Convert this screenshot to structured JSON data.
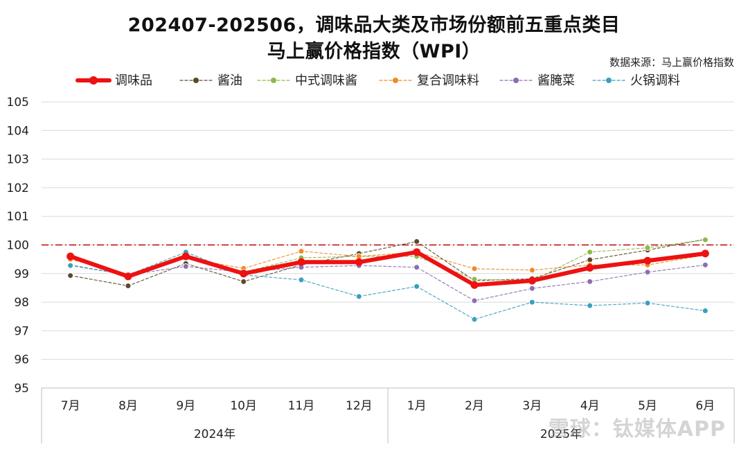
{
  "watermark": "雪球：钛媒体APP",
  "chart_data": {
    "type": "line",
    "title": "202407-202506，调味品大类及市场份额前五重点类目",
    "subtitle": "马上赢价格指数（WPI）",
    "source": "数据来源：马上赢价格指数",
    "categories": [
      "7月",
      "8月",
      "9月",
      "10月",
      "11月",
      "12月",
      "1月",
      "2月",
      "3月",
      "4月",
      "5月",
      "6月"
    ],
    "year_groups": [
      {
        "label": "2024年",
        "span": 6
      },
      {
        "label": "2025年",
        "span": 6
      }
    ],
    "ylim": [
      95,
      105
    ],
    "yticks": [
      95,
      96,
      97,
      98,
      99,
      100,
      101,
      102,
      103,
      104,
      105
    ],
    "reference_line": 100,
    "legend_position": "top",
    "series": [
      {
        "name": "调味品",
        "color": "#ee1111",
        "style": "solid-bold",
        "values": [
          99.6,
          98.9,
          99.6,
          99.0,
          99.4,
          99.4,
          99.75,
          98.6,
          98.75,
          99.2,
          99.45,
          99.7
        ]
      },
      {
        "name": "酱油",
        "color": "#5a4a2a",
        "style": "dashed",
        "values": [
          98.93,
          98.57,
          99.35,
          98.72,
          99.3,
          99.7,
          100.12,
          98.75,
          98.82,
          99.48,
          99.82,
          100.2
        ]
      },
      {
        "name": "中式调味酱",
        "color": "#8db84a",
        "style": "dashed",
        "values": [
          99.55,
          98.95,
          99.6,
          99.05,
          99.55,
          99.6,
          99.6,
          98.8,
          98.75,
          99.75,
          99.9,
          100.18
        ]
      },
      {
        "name": "复合调味料",
        "color": "#f08a24",
        "style": "dashed",
        "values": [
          99.5,
          98.98,
          99.55,
          99.18,
          99.78,
          99.6,
          99.75,
          99.17,
          99.12,
          99.3,
          99.3,
          99.65
        ]
      },
      {
        "name": "酱腌菜",
        "color": "#8a6eb0",
        "style": "dashed",
        "values": [
          99.3,
          98.95,
          99.25,
          99.05,
          99.22,
          99.28,
          99.22,
          98.05,
          98.48,
          98.72,
          99.05,
          99.3
        ]
      },
      {
        "name": "火锅调料",
        "color": "#3aa0c0",
        "style": "dashed",
        "values": [
          99.28,
          98.95,
          99.75,
          98.95,
          98.78,
          98.2,
          98.55,
          97.4,
          98.0,
          97.88,
          97.97,
          97.7
        ]
      }
    ]
  }
}
